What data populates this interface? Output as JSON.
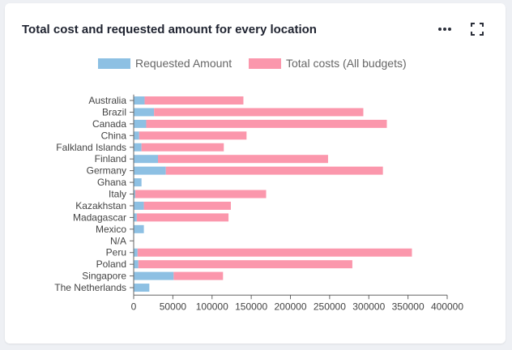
{
  "card": {
    "title": "Total cost and requested amount for every location",
    "more_icon": "more-horizontal-icon",
    "expand_icon": "fullscreen-icon"
  },
  "chart_data": {
    "type": "bar",
    "orientation": "horizontal",
    "stacked": true,
    "title": "",
    "xlabel": "",
    "ylabel": "",
    "legend_position": "top-center",
    "grid": false,
    "xlim": [
      0,
      400000
    ],
    "x_ticks": [
      0,
      50000,
      100000,
      150000,
      200000,
      250000,
      300000,
      350000,
      400000
    ],
    "categories": [
      "Australia",
      "Brazil",
      "Canada",
      "China",
      "Falkland Islands",
      "Finland",
      "Germany",
      "Ghana",
      "Italy",
      "Kazakhstan",
      "Madagascar",
      "Mexico",
      "N/A",
      "Peru",
      "Poland",
      "Singapore",
      "The Netherlands"
    ],
    "series": [
      {
        "name": "Requested Amount",
        "color": "#8dc0e3",
        "values": [
          14000,
          26000,
          16000,
          7000,
          10000,
          31000,
          41000,
          10000,
          2000,
          13000,
          4000,
          13000,
          0,
          5000,
          6000,
          51000,
          20000
        ]
      },
      {
        "name": "Total costs (All budgets)",
        "color": "#fb97ac",
        "values": [
          126000,
          267000,
          307000,
          137000,
          105000,
          217000,
          277000,
          0,
          167000,
          111000,
          117000,
          0,
          0,
          350000,
          273000,
          63000,
          0
        ]
      }
    ]
  }
}
